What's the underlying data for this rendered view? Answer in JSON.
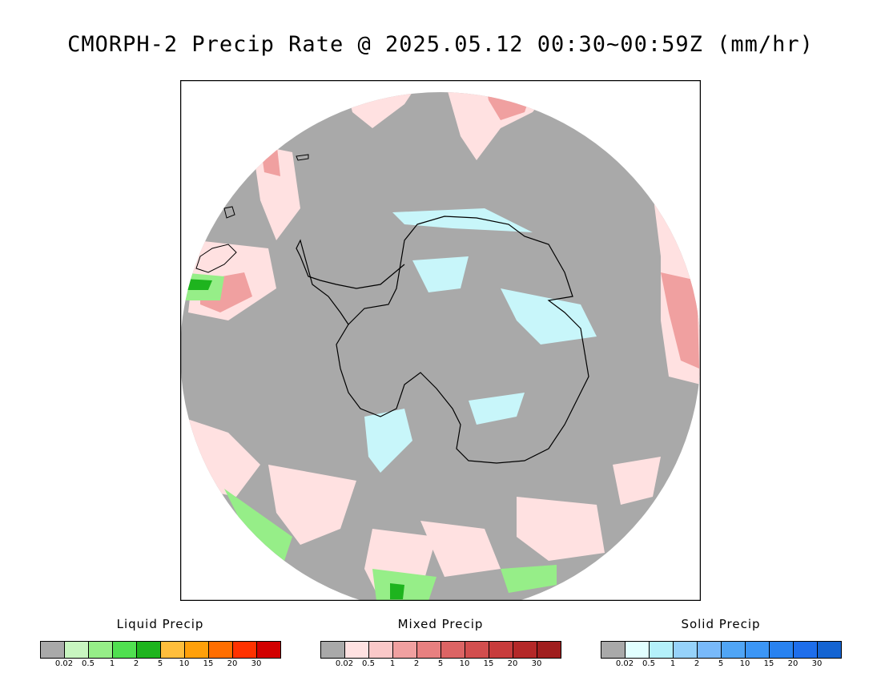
{
  "title": "CMORPH-2 Precip Rate @ 2025.05.12 00:30~00:59Z (mm/hr)",
  "map": {
    "projection": "south-polar-stereographic",
    "background_color": "#a9a9a9",
    "coastline_color": "#000000"
  },
  "legends": [
    {
      "title": "Liquid Precip",
      "colors": [
        "#a9a9a9",
        "#c8f5c0",
        "#96ee88",
        "#50e050",
        "#1eb41e",
        "#ffbe3c",
        "#ffa00a",
        "#ff6e00",
        "#ff3200",
        "#d20000"
      ],
      "ticks": [
        "0.02",
        "0.5",
        "1",
        "2",
        "5",
        "10",
        "15",
        "20",
        "30"
      ]
    },
    {
      "title": "Mixed Precip",
      "colors": [
        "#a9a9a9",
        "#ffe1e1",
        "#fac8c8",
        "#f0a0a0",
        "#e88080",
        "#dc6464",
        "#d24e4e",
        "#c83c3c",
        "#b42828",
        "#a01e1e"
      ],
      "ticks": [
        "0.02",
        "0.5",
        "1",
        "2",
        "5",
        "10",
        "15",
        "20",
        "30"
      ]
    },
    {
      "title": "Solid Precip",
      "colors": [
        "#a9a9a9",
        "#e1ffff",
        "#b4f0fa",
        "#96d2fa",
        "#78b9fa",
        "#50a5f5",
        "#3c96f5",
        "#2882f0",
        "#1e6eeb",
        "#1464d2"
      ],
      "ticks": [
        "0.02",
        "0.5",
        "1",
        "2",
        "5",
        "10",
        "15",
        "20",
        "30"
      ]
    }
  ]
}
